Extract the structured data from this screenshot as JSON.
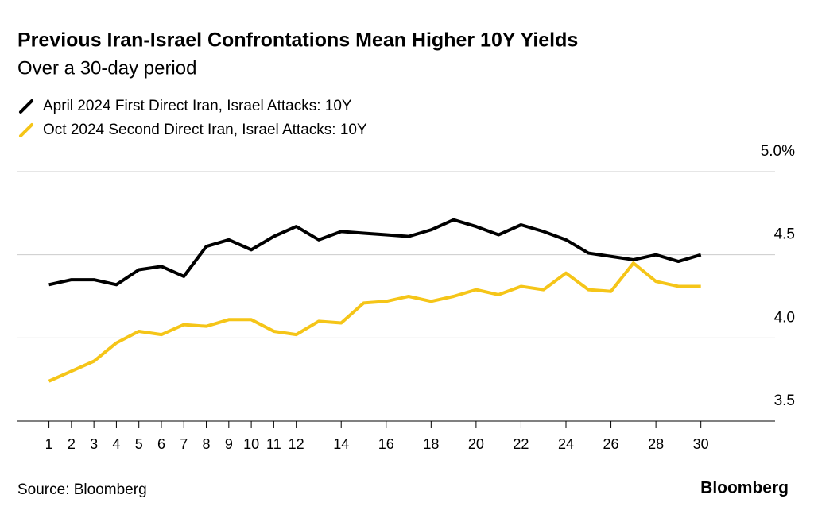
{
  "chart_data": {
    "type": "line",
    "title": "Previous Iran-Israel Confrontations Mean Higher 10Y Yields",
    "subtitle": "Over a 30-day period",
    "source": "Source: Bloomberg",
    "brand": "Bloomberg",
    "x": [
      1,
      2,
      3,
      4,
      5,
      6,
      7,
      8,
      9,
      10,
      11,
      12,
      13,
      14,
      15,
      16,
      17,
      18,
      19,
      20,
      21,
      22,
      23,
      24,
      25,
      26,
      27,
      28,
      29,
      30
    ],
    "xlim": [
      -0.4,
      33.3
    ],
    "xticks": [
      1,
      2,
      3,
      4,
      5,
      6,
      7,
      8,
      9,
      10,
      11,
      12,
      14,
      16,
      18,
      20,
      22,
      24,
      26,
      28,
      30
    ],
    "ylim": [
      3.5,
      5.0
    ],
    "yticks": [
      3.5,
      {
        "value": 4,
        "label": "4.0"
      },
      4.5,
      {
        "value": 5,
        "label": "5.0%"
      }
    ],
    "grid": true,
    "series": [
      {
        "name": "April 2024 First Direct Iran, Israel Attacks: 10Y",
        "color": "#000000",
        "values": [
          4.32,
          4.35,
          4.35,
          4.32,
          4.41,
          4.43,
          4.37,
          4.55,
          4.59,
          4.53,
          4.61,
          4.67,
          4.59,
          4.64,
          4.63,
          4.62,
          4.61,
          4.65,
          4.71,
          4.67,
          4.62,
          4.68,
          4.64,
          4.59,
          4.51,
          4.49,
          4.47,
          4.5,
          4.46,
          4.5
        ]
      },
      {
        "name": "Oct 2024 Second Direct Iran, Israel Attacks: 10Y",
        "color": "#f5c518",
        "values": [
          3.74,
          3.8,
          3.86,
          3.97,
          4.04,
          4.02,
          4.08,
          4.07,
          4.11,
          4.11,
          4.04,
          4.02,
          4.1,
          4.09,
          4.21,
          4.22,
          4.25,
          4.22,
          4.25,
          4.29,
          4.26,
          4.31,
          4.29,
          4.39,
          4.29,
          4.28,
          4.45,
          4.34,
          4.31,
          4.31
        ]
      }
    ]
  }
}
